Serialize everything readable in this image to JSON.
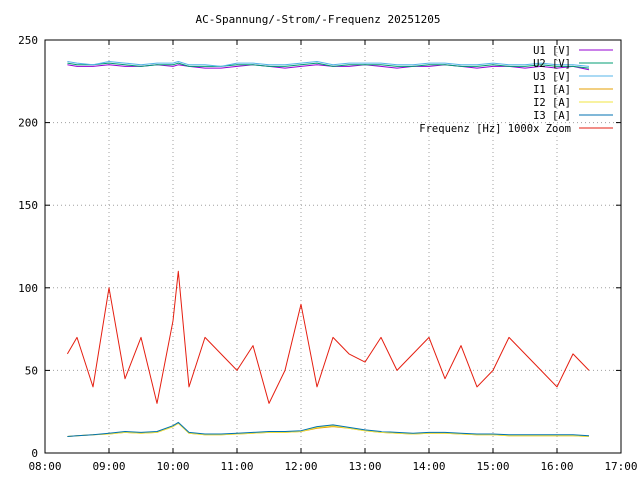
{
  "chart_data": {
    "type": "line",
    "title": "AC-Spannung/-Strom/-Frequenz 20251205",
    "xlabel": "",
    "ylabel": "",
    "xlim": [
      "08:00",
      "17:00"
    ],
    "ylim": [
      0,
      250
    ],
    "x_ticks": [
      "08:00",
      "09:00",
      "10:00",
      "11:00",
      "12:00",
      "13:00",
      "14:00",
      "15:00",
      "16:00",
      "17:00"
    ],
    "y_ticks": [
      0,
      50,
      100,
      150,
      200,
      250
    ],
    "grid": true,
    "legend_position": "top-right",
    "x": [
      "08:21",
      "08:30",
      "08:45",
      "09:00",
      "09:15",
      "09:30",
      "09:45",
      "10:00",
      "10:05",
      "10:15",
      "10:30",
      "10:45",
      "11:00",
      "11:15",
      "11:30",
      "11:45",
      "12:00",
      "12:15",
      "12:30",
      "12:45",
      "13:00",
      "13:15",
      "13:30",
      "13:45",
      "14:00",
      "14:15",
      "14:30",
      "14:45",
      "15:00",
      "15:15",
      "15:30",
      "15:45",
      "16:00",
      "16:15",
      "16:30"
    ],
    "series": [
      {
        "name": "U1 [V]",
        "color": "#9400d3",
        "values": [
          235,
          234,
          234,
          235,
          234,
          234,
          235,
          234,
          235,
          234,
          233,
          233,
          234,
          235,
          234,
          233,
          234,
          235,
          234,
          234,
          235,
          234,
          233,
          234,
          234,
          235,
          234,
          233,
          234,
          234,
          233,
          234,
          233,
          234,
          232
        ]
      },
      {
        "name": "U2 [V]",
        "color": "#009e73",
        "values": [
          236,
          235,
          235,
          236,
          235,
          234,
          235,
          235,
          236,
          234,
          234,
          234,
          235,
          235,
          234,
          234,
          235,
          236,
          234,
          235,
          235,
          235,
          234,
          234,
          235,
          235,
          234,
          234,
          235,
          234,
          234,
          235,
          234,
          234,
          233
        ]
      },
      {
        "name": "U3 [V]",
        "color": "#56b4e9",
        "values": [
          237,
          236,
          235,
          237,
          236,
          235,
          236,
          236,
          237,
          235,
          235,
          234,
          236,
          236,
          235,
          235,
          236,
          237,
          235,
          236,
          236,
          236,
          235,
          235,
          236,
          236,
          235,
          235,
          236,
          235,
          235,
          236,
          235,
          235,
          234
        ]
      },
      {
        "name": "I1 [A]",
        "color": "#e69f00",
        "values": [
          10,
          10.5,
          11,
          11.5,
          12.5,
          12,
          12.5,
          16,
          18,
          12,
          11,
          11,
          11.5,
          12,
          12.5,
          12.5,
          13,
          15,
          16,
          15,
          13.5,
          12.5,
          12,
          11.5,
          12,
          12,
          11.5,
          11,
          11,
          10.5,
          10.5,
          10.5,
          10.5,
          10.5,
          10
        ]
      },
      {
        "name": "I2 [A]",
        "color": "#f0e442",
        "values": [
          10,
          10.5,
          11,
          11.5,
          12.5,
          12,
          12.5,
          16,
          18,
          12,
          11,
          11,
          11.5,
          12,
          12.5,
          12.5,
          13,
          15.5,
          16.5,
          15,
          13.5,
          12.5,
          12,
          11.5,
          12,
          12,
          11.5,
          11,
          11,
          10.5,
          10.5,
          10.5,
          10.5,
          10.5,
          10
        ]
      },
      {
        "name": "I3 [A]",
        "color": "#0072b2",
        "values": [
          10,
          10.5,
          11,
          12,
          13,
          12.5,
          13,
          16.5,
          18.5,
          12.5,
          11.5,
          11.5,
          12,
          12.5,
          13,
          13,
          13.5,
          16,
          17,
          15.5,
          14,
          13,
          12.5,
          12,
          12.5,
          12.5,
          12,
          11.5,
          11.5,
          11,
          11,
          11,
          11,
          11,
          10.5
        ]
      },
      {
        "name": "Frequenz [Hz] 1000x Zoom",
        "color": "#e51e10",
        "values": [
          60,
          70,
          40,
          100,
          45,
          70,
          30,
          80,
          110,
          40,
          70,
          60,
          50,
          65,
          30,
          50,
          90,
          40,
          70,
          60,
          55,
          70,
          50,
          60,
          70,
          45,
          65,
          40,
          50,
          70,
          60,
          50,
          40,
          60,
          50
        ]
      }
    ]
  }
}
